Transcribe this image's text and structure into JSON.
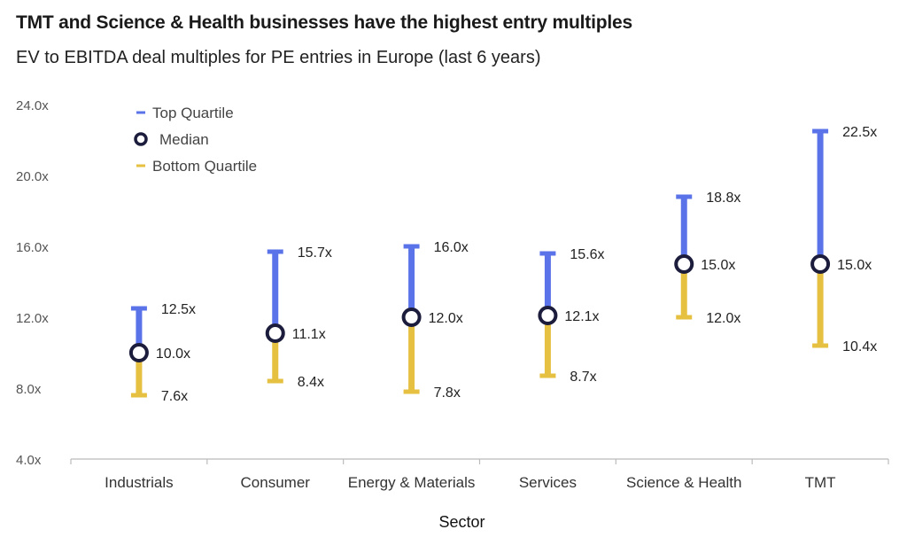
{
  "header": {
    "title": "TMT and Science & Health businesses have the highest entry multiples",
    "subtitle": "EV to EBITDA deal multiples for PE entries in Europe (last 6 years)"
  },
  "colors": {
    "top_quartile": "#5b73e8",
    "bottom_quartile": "#e6c040",
    "median_stroke": "#1c1c3c",
    "axis": "#bbbbbb"
  },
  "chart_data": {
    "type": "range",
    "title": "TMT and Science & Health businesses have the highest entry multiples",
    "subtitle": "EV to EBITDA deal multiples for PE entries in Europe (last 6 years)",
    "xlabel": "Sector",
    "ylabel": "",
    "ylim": [
      4,
      24
    ],
    "yticks": [
      4,
      8,
      12,
      16,
      20,
      24
    ],
    "ytick_labels": [
      "4.0x",
      "8.0x",
      "12.0x",
      "16.0x",
      "20.0x",
      "24.0x"
    ],
    "categories": [
      "Industrials",
      "Consumer",
      "Energy & Materials",
      "Services",
      "Science & Health",
      "TMT"
    ],
    "series": [
      {
        "name": "Top Quartile",
        "values": [
          12.5,
          15.7,
          16.0,
          15.6,
          18.8,
          22.5
        ],
        "labels": [
          "12.5x",
          "15.7x",
          "16.0x",
          "15.6x",
          "18.8x",
          "22.5x"
        ]
      },
      {
        "name": "Median",
        "values": [
          10.0,
          11.1,
          12.0,
          12.1,
          15.0,
          15.0
        ],
        "labels": [
          "10.0x",
          "11.1x",
          "12.0x",
          "12.1x",
          "15.0x",
          "15.0x"
        ]
      },
      {
        "name": "Bottom Quartile",
        "values": [
          7.6,
          8.4,
          7.8,
          8.7,
          12.0,
          10.4
        ],
        "labels": [
          "7.6x",
          "8.4x",
          "7.8x",
          "8.7x",
          "12.0x",
          "10.4x"
        ]
      }
    ],
    "legend": {
      "placement": "top-left",
      "items": [
        "Top Quartile",
        "Median",
        "Bottom Quartile"
      ]
    },
    "grid": false
  }
}
